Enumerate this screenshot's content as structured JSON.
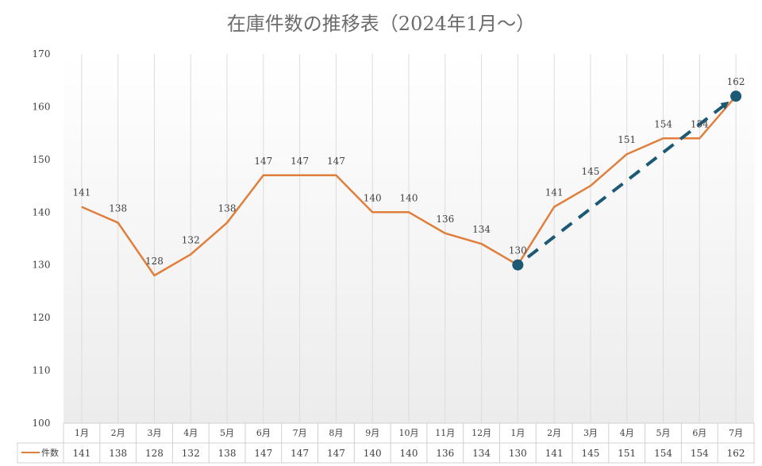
{
  "chart_data": {
    "type": "line",
    "title": "在庫件数の推移表（2024年1月～）",
    "categories": [
      "1月",
      "2月",
      "3月",
      "4月",
      "5月",
      "6月",
      "7月",
      "8月",
      "9月",
      "10月",
      "11月",
      "12月",
      "1月",
      "2月",
      "3月",
      "4月",
      "5月",
      "6月",
      "7月"
    ],
    "series": [
      {
        "name": "件数",
        "values": [
          141,
          138,
          128,
          132,
          138,
          147,
          147,
          147,
          140,
          140,
          136,
          134,
          130,
          141,
          145,
          151,
          154,
          154,
          162
        ]
      }
    ],
    "ylim": [
      100,
      170
    ],
    "yticks": [
      100,
      110,
      120,
      130,
      140,
      150,
      160,
      170
    ],
    "grid": "vertical",
    "data_table": true,
    "colors": {
      "line": "#E07E3C",
      "marker": "#1B5975",
      "trend": "#1B5975"
    },
    "markers": [
      12,
      18
    ],
    "trend_arrow": {
      "from_index": 12,
      "to_index": 18
    }
  }
}
